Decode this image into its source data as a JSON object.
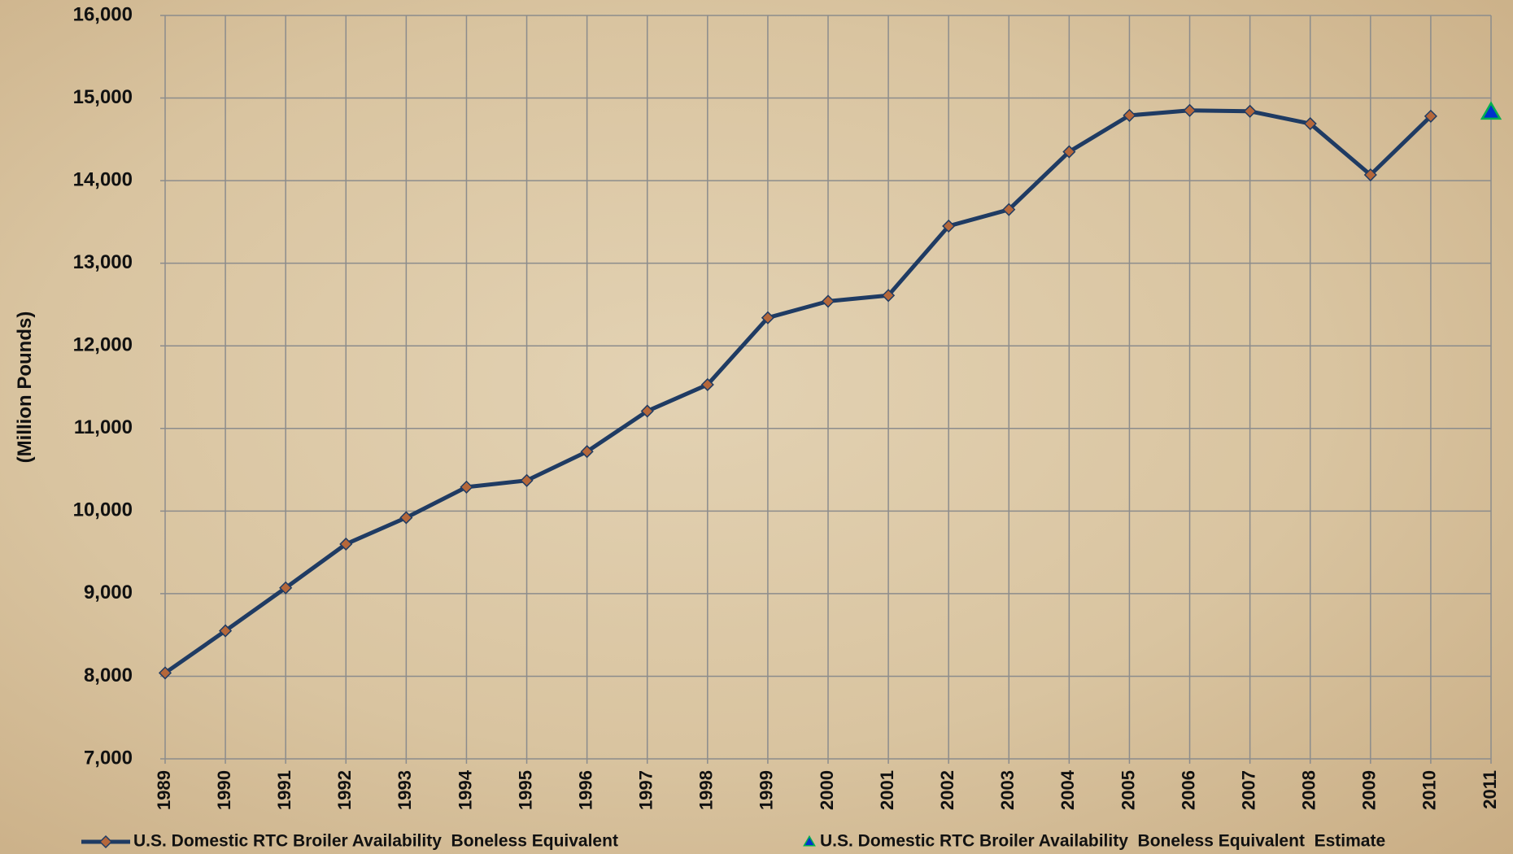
{
  "chart_data": {
    "type": "line",
    "y_label": "(Million Pounds)",
    "categories": [
      "1989",
      "1990",
      "1991",
      "1992",
      "1993",
      "1994",
      "1995",
      "1996",
      "1997",
      "1998",
      "1999",
      "2000",
      "2001",
      "2002",
      "2003",
      "2004",
      "2005",
      "2006",
      "2007",
      "2008",
      "2009",
      "2010",
      "2011"
    ],
    "series": [
      {
        "name": "U.S. Domestic RTC Broiler Availability  Boneless Equivalent",
        "color": "#1f3b63",
        "marker": "diamond",
        "marker_color": "#b5673a",
        "values": [
          8040,
          8550,
          9070,
          9600,
          9920,
          10290,
          10370,
          10720,
          11210,
          11530,
          12340,
          12540,
          12610,
          13450,
          13650,
          14350,
          14790,
          14850,
          14840,
          14690,
          14070,
          14780,
          null
        ]
      },
      {
        "name": "U.S. Domestic RTC Broiler Availability  Boneless Equivalent  Estimate",
        "color": "#0033cc",
        "marker": "triangle",
        "marker_color": "#00b050",
        "values": [
          null,
          null,
          null,
          null,
          null,
          null,
          null,
          null,
          null,
          null,
          null,
          null,
          null,
          null,
          null,
          null,
          null,
          null,
          null,
          null,
          null,
          null,
          14830
        ]
      }
    ],
    "ylim": [
      7000,
      16000
    ],
    "yticks": [
      {
        "value": 7000,
        "label": "7,000"
      },
      {
        "value": 8000,
        "label": "8,000"
      },
      {
        "value": 9000,
        "label": "9,000"
      },
      {
        "value": 10000,
        "label": "10,000"
      },
      {
        "value": 11000,
        "label": "11,000"
      },
      {
        "value": 12000,
        "label": "12,000"
      },
      {
        "value": 13000,
        "label": "13,000"
      },
      {
        "value": 14000,
        "label": "14,000"
      },
      {
        "value": 15000,
        "label": "15,000"
      },
      {
        "value": 16000,
        "label": "16,000"
      }
    ],
    "grid": true
  }
}
